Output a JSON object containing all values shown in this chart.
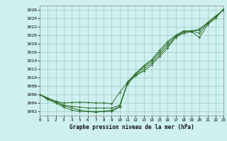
{
  "xlabel": "Graphe pression niveau de la mer (hPa)",
  "background_color": "#cff0f0",
  "grid_color": "#99ccbb",
  "line_color": "#2d6e2d",
  "xlim": [
    0,
    23
  ],
  "ylim": [
    1001.0,
    1027.0
  ],
  "xticks": [
    0,
    1,
    2,
    3,
    4,
    5,
    6,
    7,
    8,
    9,
    10,
    11,
    12,
    13,
    14,
    15,
    16,
    17,
    18,
    19,
    20,
    21,
    22,
    23
  ],
  "yticks": [
    1002,
    1004,
    1006,
    1008,
    1010,
    1012,
    1014,
    1016,
    1018,
    1020,
    1022,
    1024,
    1026
  ],
  "series": [
    [
      1006.0,
      1005.2,
      1004.4,
      1004.0,
      1004.1,
      1004.2,
      1004.1,
      1004.0,
      1004.0,
      1003.8,
      1006.5,
      1009.0,
      1010.5,
      1011.5,
      1013.0,
      1015.0,
      1017.0,
      1019.5,
      1020.5,
      1020.8,
      1019.5,
      1022.5,
      1024.0,
      1026.2
    ],
    [
      1006.0,
      1005.0,
      1004.3,
      1003.5,
      1003.2,
      1003.0,
      1002.8,
      1002.8,
      1002.8,
      1002.8,
      1003.5,
      1008.5,
      1010.5,
      1012.0,
      1013.5,
      1015.5,
      1017.5,
      1019.5,
      1020.8,
      1021.0,
      1020.5,
      1022.8,
      1024.3,
      1026.2
    ],
    [
      1006.0,
      1005.0,
      1004.3,
      1003.3,
      1002.8,
      1002.3,
      1002.0,
      1001.8,
      1002.0,
      1002.3,
      1003.2,
      1008.8,
      1010.8,
      1012.5,
      1014.0,
      1016.0,
      1018.0,
      1019.8,
      1021.0,
      1021.0,
      1021.2,
      1023.0,
      1024.5,
      1026.0
    ],
    [
      1006.0,
      1004.8,
      1004.0,
      1003.0,
      1002.3,
      1002.0,
      1002.0,
      1002.0,
      1002.0,
      1002.0,
      1003.0,
      1009.0,
      1011.0,
      1012.8,
      1014.2,
      1016.5,
      1018.5,
      1020.0,
      1021.0,
      1021.0,
      1021.5,
      1023.0,
      1024.5,
      1026.0
    ]
  ]
}
